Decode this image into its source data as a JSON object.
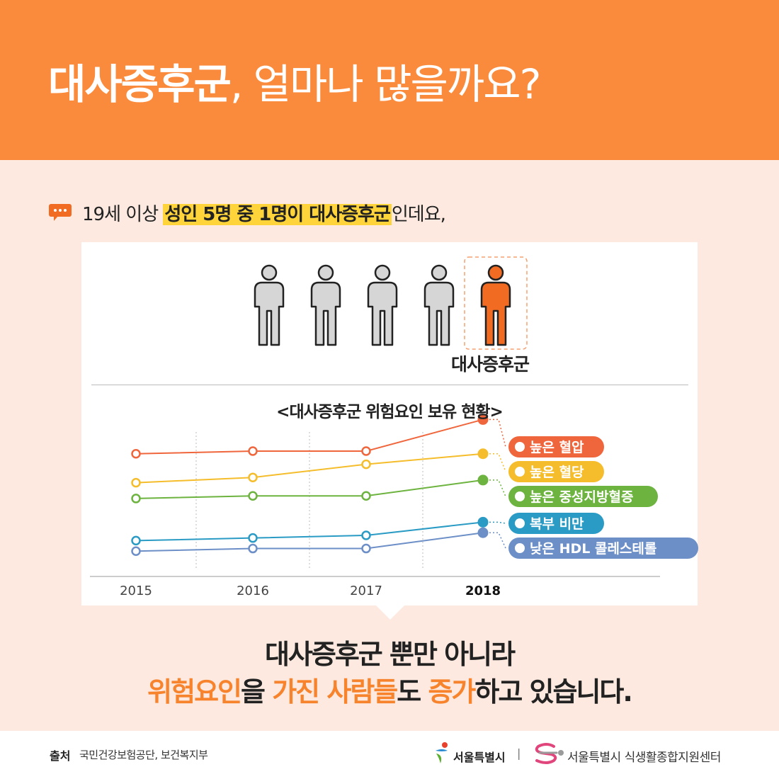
{
  "header": {
    "title_bold": "대사증후군",
    "title_light": ", 얼마나 많을까요?",
    "bg_color": "#fb8b3c"
  },
  "intro": {
    "icon": "speech-bubble-icon",
    "prefix": "19세 이상 ",
    "highlight": "성인 5명 중 1명이 대사증후군",
    "suffix": "인데요,"
  },
  "people": {
    "total": 5,
    "highlighted": 1,
    "caption": "대사증후군",
    "icon": "person-icon",
    "gray": "#d6d6d6",
    "accent": "#f26b23"
  },
  "chart_data": {
    "type": "line",
    "title": "<대사증후군 위험요인 보유 현황>",
    "x": [
      "2015",
      "2016",
      "2017",
      "2018"
    ],
    "highlight_x": "2018",
    "series": [
      {
        "name": "높은 혈압",
        "color": "#f0663c",
        "values": [
          6.5,
          6.6,
          6.6,
          7.8
        ]
      },
      {
        "name": "높은 혈당",
        "color": "#f5bd2b",
        "values": [
          5.4,
          5.6,
          6.1,
          6.5
        ]
      },
      {
        "name": "높은 중성지방혈증",
        "color": "#6db33f",
        "values": [
          4.8,
          4.9,
          4.9,
          5.5
        ]
      },
      {
        "name": "복부 비만",
        "color": "#2a9bc4",
        "values": [
          3.2,
          3.3,
          3.4,
          3.9
        ]
      },
      {
        "name": "낮은 HDL 콜레스테롤",
        "color": "#6d8fc7",
        "values": [
          2.8,
          2.9,
          2.9,
          3.5
        ]
      }
    ],
    "legend_position": "right",
    "grid": "vertical-dotted"
  },
  "conclusion": {
    "line1": "대사증후군 뿐만 아니라",
    "w1": "위험요인",
    "t1": "을 ",
    "w2": "가진 사람들",
    "t2": "도 ",
    "w3": "증가",
    "t3": "하고 있습니다."
  },
  "footer": {
    "source_label": "출처",
    "source_text": "국민건강보험공단, 보건복지부",
    "seoul_logo_text": "서울특별시",
    "separator": "|",
    "center_name": "서울특별시 식생활종합지원센터"
  }
}
